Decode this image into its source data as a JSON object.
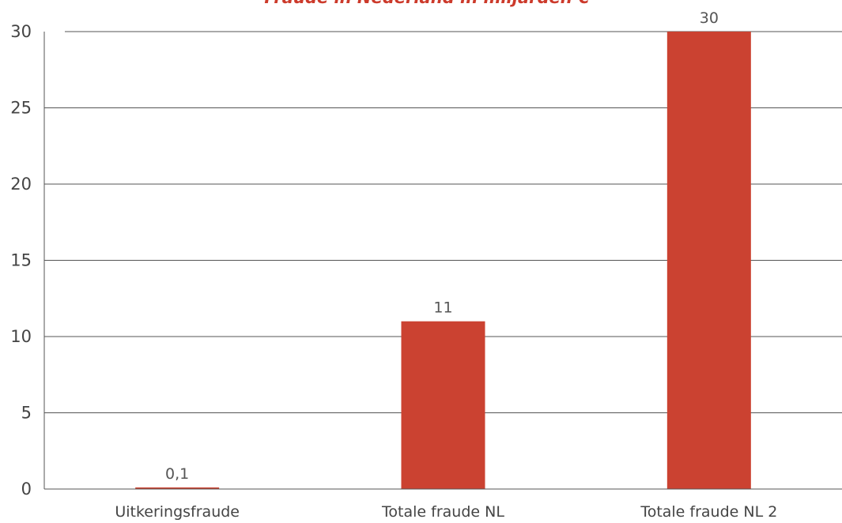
{
  "chart_data": {
    "type": "bar",
    "title": "Fraude in Nederland in miljarden €",
    "categories": [
      "Uitkeringsfraude",
      "Totale fraude NL",
      "Totale fraude NL 2"
    ],
    "values": [
      0.1,
      11,
      30
    ],
    "value_labels": [
      "0,1",
      "11",
      "30"
    ],
    "y_ticks": [
      "0",
      "5",
      "10",
      "15",
      "20",
      "25",
      "30"
    ],
    "ylim": [
      0,
      30
    ],
    "grid": true,
    "legend": "none",
    "bar_color": "#cb4231",
    "title_color": "#cc3a2b"
  }
}
